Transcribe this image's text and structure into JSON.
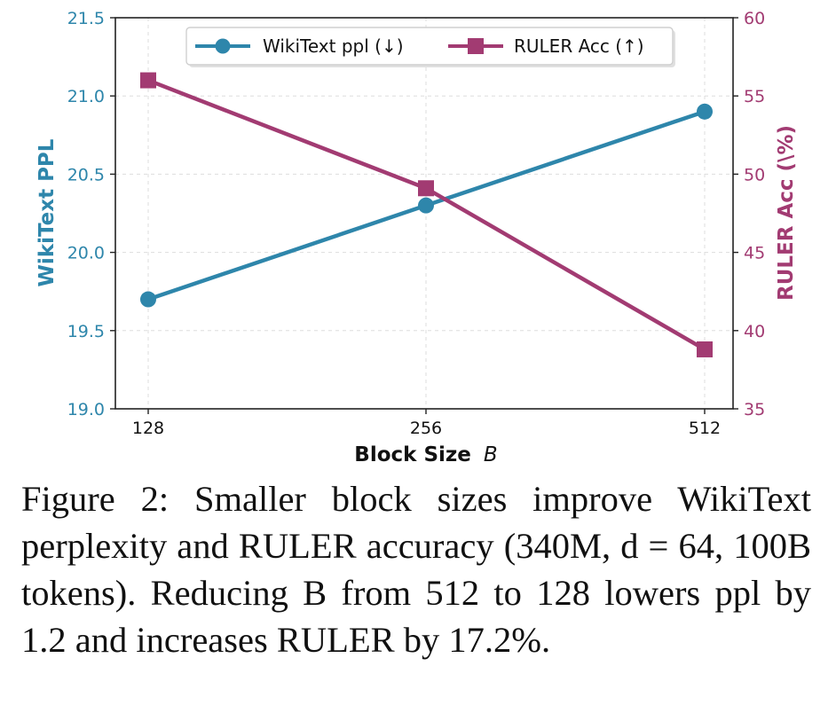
{
  "chart_data": {
    "type": "line",
    "x": [
      128,
      256,
      512
    ],
    "x_tick_labels": [
      "128",
      "256",
      "512"
    ],
    "xlabel": "Block Size",
    "xlabel_var": "B",
    "y_left": {
      "label": "WikiText PPL",
      "range": [
        19.0,
        21.5
      ],
      "ticks": [
        "19.0",
        "19.5",
        "20.0",
        "20.5",
        "21.0",
        "21.5"
      ]
    },
    "y_right": {
      "label": "RULER Acc (\\%)",
      "range": [
        35,
        60
      ],
      "ticks": [
        "35",
        "40",
        "45",
        "50",
        "55",
        "60"
      ]
    },
    "series": [
      {
        "name": "WikiText ppl (↓)",
        "axis": "left",
        "color": "#2e86ab",
        "marker": "circle",
        "values": [
          19.7,
          20.3,
          20.9
        ]
      },
      {
        "name": "RULER Acc (↑)",
        "axis": "right",
        "color": "#a23b72",
        "marker": "square",
        "values": [
          56.0,
          49.1,
          38.8
        ]
      }
    ],
    "legend": "top-center",
    "grid": true
  },
  "caption": {
    "label": "Figure 2:",
    "text": "Smaller block sizes improve WikiText perplexity and RULER accuracy (340M, d = 64, 100B tokens). Reducing B from 512 to 128 lowers ppl by 1.2 and increases RULER by 17.2%."
  }
}
